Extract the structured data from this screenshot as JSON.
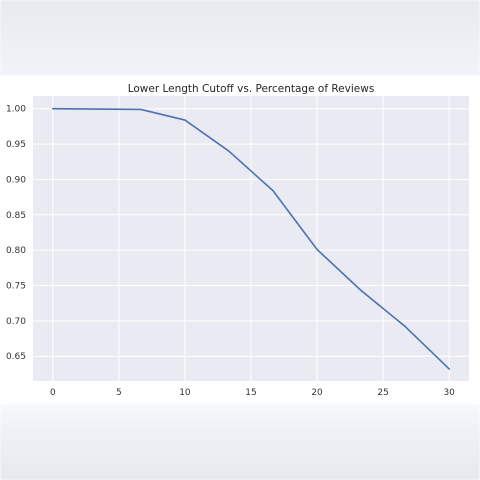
{
  "chart_data": {
    "type": "line",
    "title": "Lower Length Cutoff vs. Percentage of Reviews",
    "xlabel": "",
    "ylabel": "",
    "x": [
      0,
      3.33,
      6.67,
      10,
      13.33,
      16.67,
      20,
      23.33,
      26.67,
      30
    ],
    "series": [
      {
        "values": [
          1.0,
          0.9995,
          0.999,
          0.984,
          0.94,
          0.884,
          0.801,
          0.743,
          0.692,
          0.632
        ]
      }
    ],
    "xlim": [
      -1.5,
      31.5
    ],
    "ylim": [
      0.615,
      1.018
    ],
    "xticks": [
      0,
      5,
      10,
      15,
      20,
      25,
      30
    ],
    "yticks": [
      0.65,
      0.7,
      0.75,
      0.8,
      0.85,
      0.9,
      0.95,
      1.0
    ],
    "xtick_labels": [
      "0",
      "5",
      "10",
      "15",
      "20",
      "25",
      "30"
    ],
    "ytick_labels": [
      "0.65",
      "0.70",
      "0.75",
      "0.80",
      "0.85",
      "0.90",
      "0.95",
      "1.00"
    ],
    "grid": true,
    "colors": {
      "plot_background": "#eaeaf2",
      "grid": "#ffffff",
      "line": "#4c72b0"
    }
  }
}
